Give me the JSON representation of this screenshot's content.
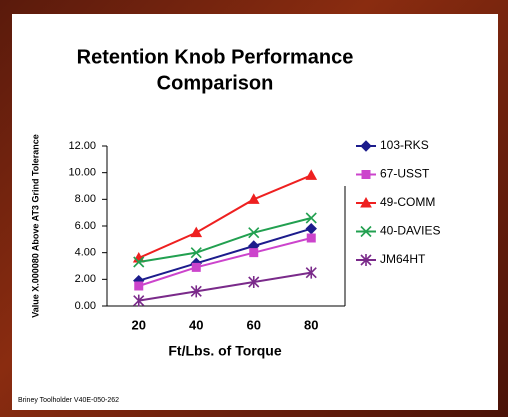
{
  "chart_data": {
    "type": "line",
    "title": "Retention Knob Performance",
    "subtitle": "Comparison",
    "x_label": "Ft/Lbs. of Torque",
    "y_label": "Value X.000080 Above AT3 Grind Tolerance",
    "footer": "Briney Toolholder V40E-050-262",
    "categories": [
      "20",
      "40",
      "60",
      "80"
    ],
    "series": [
      {
        "name": "103-RKS",
        "color": "#1c1c8c",
        "marker": "diamond",
        "values": [
          1.9,
          3.2,
          4.5,
          5.8
        ]
      },
      {
        "name": "67-USST",
        "color": "#cc44cc",
        "marker": "square",
        "values": [
          1.5,
          2.9,
          4.0,
          5.1
        ]
      },
      {
        "name": "49-COMM",
        "color": "#ee2020",
        "marker": "triangle",
        "values": [
          3.6,
          5.5,
          8.0,
          9.8
        ]
      },
      {
        "name": "40-DAVIES",
        "color": "#22a050",
        "marker": "x",
        "values": [
          3.3,
          4.0,
          5.5,
          6.6
        ]
      },
      {
        "name": "JM64HT",
        "color": "#7a2a8a",
        "marker": "star",
        "values": [
          0.4,
          1.1,
          1.8,
          2.5
        ]
      }
    ],
    "ylim": [
      0,
      12
    ],
    "yticks": [
      {
        "value": 0,
        "label": "0.00"
      },
      {
        "value": 2,
        "label": "2.00"
      },
      {
        "value": 4,
        "label": "4.00"
      },
      {
        "value": 6,
        "label": "6.00"
      },
      {
        "value": 8,
        "label": "8.00"
      },
      {
        "value": 10,
        "label": "10.00"
      },
      {
        "value": 12,
        "label": "12.00"
      }
    ],
    "legend": "right"
  }
}
